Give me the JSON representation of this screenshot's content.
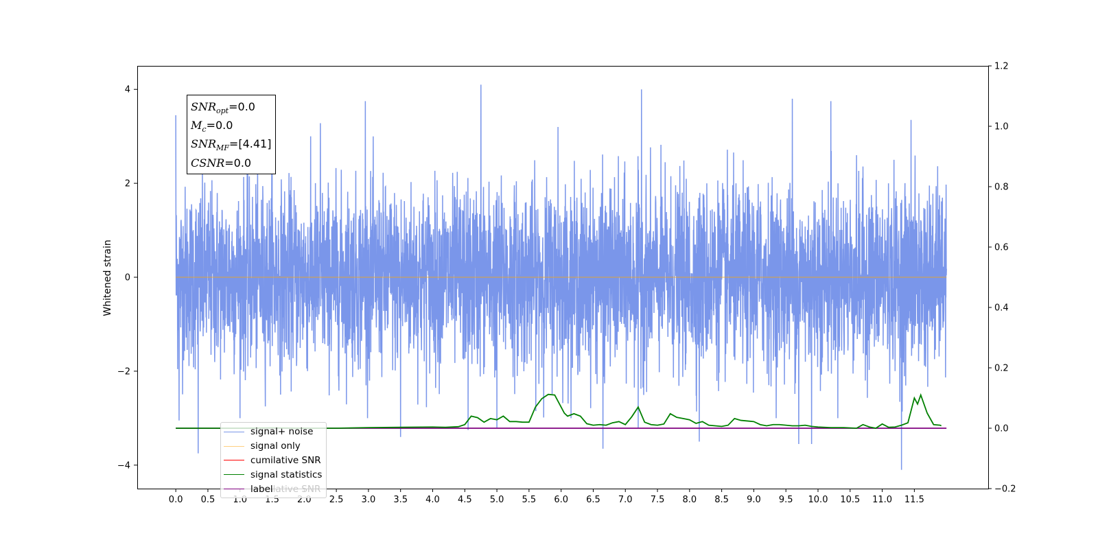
{
  "chart_data": {
    "type": "line",
    "title": "",
    "xlabel": "",
    "ylabel": "Whitened strain",
    "xlim": [
      -0.6,
      12.65
    ],
    "ylim_left": [
      -4.5,
      4.5
    ],
    "ylim_right": [
      -0.2,
      1.2
    ],
    "x_ticks": [
      "0.0",
      "0.5",
      "1.0",
      "1.5",
      "2.0",
      "2.5",
      "3.0",
      "3.5",
      "4.0",
      "4.5",
      "5.0",
      "5.5",
      "6.0",
      "6.5",
      "7.0",
      "7.5",
      "8.0",
      "8.5",
      "9.0",
      "9.5",
      "10.0",
      "10.5",
      "11.0",
      "11.5"
    ],
    "y_ticks_left": [
      "−4",
      "−2",
      "0",
      "2",
      "4"
    ],
    "y_ticks_right": [
      "−0.2",
      "0.0",
      "0.2",
      "0.4",
      "0.6",
      "0.8",
      "1.0",
      "1.2"
    ],
    "grid": false,
    "legend_position": "lower-left",
    "series": [
      {
        "name": "signal+ noise",
        "axis": "left",
        "color": "#4169e1",
        "x_range": [
          0.0,
          12.0
        ],
        "description_level": "dense noise roughly ±1.6 with spikes up to ±4",
        "spike_values": [
          [
            0.0,
            3.45
          ],
          [
            0.05,
            -3.05
          ],
          [
            0.35,
            -3.75
          ],
          [
            1.5,
            3.3
          ],
          [
            2.25,
            3.28
          ],
          [
            2.95,
            3.75
          ],
          [
            3.5,
            -3.4
          ],
          [
            4.55,
            -3.25
          ],
          [
            4.75,
            4.1
          ],
          [
            5.0,
            3.6
          ],
          [
            5.0,
            -3.2
          ],
          [
            5.95,
            3.2
          ],
          [
            6.65,
            -3.65
          ],
          [
            7.25,
            4.0
          ],
          [
            7.2,
            -3.2
          ],
          [
            8.15,
            -3.5
          ],
          [
            9.6,
            3.8
          ],
          [
            9.7,
            -3.55
          ],
          [
            9.9,
            -3.55
          ],
          [
            10.2,
            3.75
          ],
          [
            11.3,
            -4.1
          ],
          [
            11.45,
            3.35
          ]
        ]
      },
      {
        "name": "signal only",
        "axis": "left",
        "color": "#ffa500",
        "x": [
          0.0,
          12.0
        ],
        "values": [
          0.0,
          0.0
        ]
      },
      {
        "name": "cumilative SNR",
        "axis": "right",
        "color": "#ff0000",
        "x": [],
        "values": []
      },
      {
        "name": "signal statistics",
        "axis": "right",
        "color": "#008000",
        "x": [
          0.0,
          0.5,
          1.0,
          1.5,
          2.0,
          2.5,
          3.0,
          3.5,
          4.0,
          4.2,
          4.4,
          4.5,
          4.6,
          4.7,
          4.8,
          4.9,
          5.0,
          5.1,
          5.2,
          5.3,
          5.4,
          5.5,
          5.6,
          5.7,
          5.8,
          5.9,
          6.0,
          6.05,
          6.1,
          6.2,
          6.3,
          6.4,
          6.5,
          6.6,
          6.7,
          6.8,
          6.9,
          7.0,
          7.1,
          7.2,
          7.3,
          7.4,
          7.5,
          7.6,
          7.7,
          7.8,
          7.9,
          8.0,
          8.1,
          8.2,
          8.3,
          8.4,
          8.5,
          8.6,
          8.7,
          8.8,
          8.9,
          9.0,
          9.1,
          9.2,
          9.3,
          9.4,
          9.5,
          9.6,
          9.7,
          9.8,
          9.9,
          10.0,
          10.2,
          10.4,
          10.6,
          10.7,
          10.8,
          10.9,
          11.0,
          11.1,
          11.2,
          11.3,
          11.4,
          11.5,
          11.55,
          11.6,
          11.7,
          11.8,
          11.9,
          12.0
        ],
        "values": [
          0.0,
          0.0,
          0.0,
          0.001,
          0.0,
          0.0,
          0.002,
          0.003,
          0.004,
          0.003,
          0.005,
          0.012,
          0.04,
          0.035,
          0.02,
          0.032,
          0.028,
          0.04,
          0.022,
          0.022,
          0.02,
          0.02,
          0.07,
          0.098,
          0.112,
          0.11,
          0.07,
          0.05,
          0.04,
          0.048,
          0.04,
          0.015,
          0.01,
          0.012,
          0.01,
          0.018,
          0.022,
          0.012,
          0.038,
          0.07,
          0.02,
          0.012,
          0.01,
          0.014,
          0.048,
          0.036,
          0.032,
          0.028,
          0.016,
          0.022,
          0.01,
          0.008,
          0.006,
          0.01,
          0.032,
          0.026,
          0.024,
          0.022,
          0.012,
          0.008,
          0.012,
          0.012,
          0.01,
          0.008,
          0.008,
          0.01,
          0.006,
          0.004,
          0.002,
          0.002,
          0.0,
          0.012,
          0.004,
          0.0,
          0.014,
          0.003,
          0.004,
          0.01,
          0.018,
          0.1,
          0.08,
          0.11,
          0.05,
          0.012,
          0.01,
          0.008
        ],
        "x_end": 11.92
      },
      {
        "name": "label",
        "axis": "right",
        "color": "#800080",
        "x": [
          0.0,
          12.0
        ],
        "values": [
          0.0,
          0.0
        ]
      }
    ],
    "annotation_box": {
      "snr_opt_sym": "SNR",
      "snr_opt_sub": "opt",
      "snr_opt_val": "=0.0",
      "mc_sym": "M",
      "mc_sub": "c",
      "mc_val": "=0.0",
      "snr_mf_sym": "SNR",
      "snr_mf_sub": "MF",
      "snr_mf_val": "=[4.41]",
      "csnr_sym": "CSNR",
      "csnr_val": "=0.0"
    },
    "legend_overlap_text": "lative SNR"
  }
}
